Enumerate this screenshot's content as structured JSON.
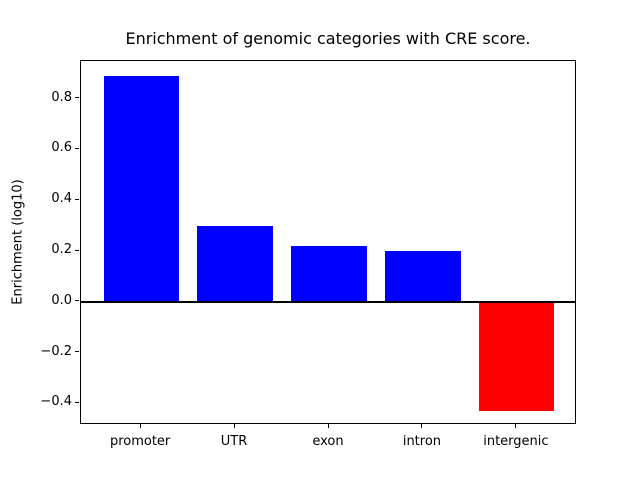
{
  "figure": {
    "background": "#ffffff",
    "axis_color": "#000000"
  },
  "chart_data": {
    "type": "bar",
    "title": "Enrichment of genomic categories with CRE score.",
    "xlabel": "",
    "ylabel": "Enrichment (log10)",
    "categories": [
      "promoter",
      "UTR",
      "exon",
      "intron",
      "intergenic"
    ],
    "values": [
      0.89,
      0.3,
      0.22,
      0.2,
      -0.43
    ],
    "bar_colors": [
      "#0000ff",
      "#0000ff",
      "#0000ff",
      "#0000ff",
      "#ff0000"
    ],
    "positive_color": "#0000ff",
    "negative_color": "#ff0000",
    "ylim": [
      -0.485,
      0.948
    ],
    "yticks": [
      -0.4,
      -0.2,
      0.0,
      0.2,
      0.4,
      0.6,
      0.8
    ],
    "ytick_labels": [
      "−0.4",
      "−0.2",
      "0.0",
      "0.2",
      "0.4",
      "0.6",
      "0.8"
    ],
    "bar_width_frac": 0.8,
    "x_margin": 0.64,
    "grid": false,
    "legend": null,
    "zero_line": true
  }
}
